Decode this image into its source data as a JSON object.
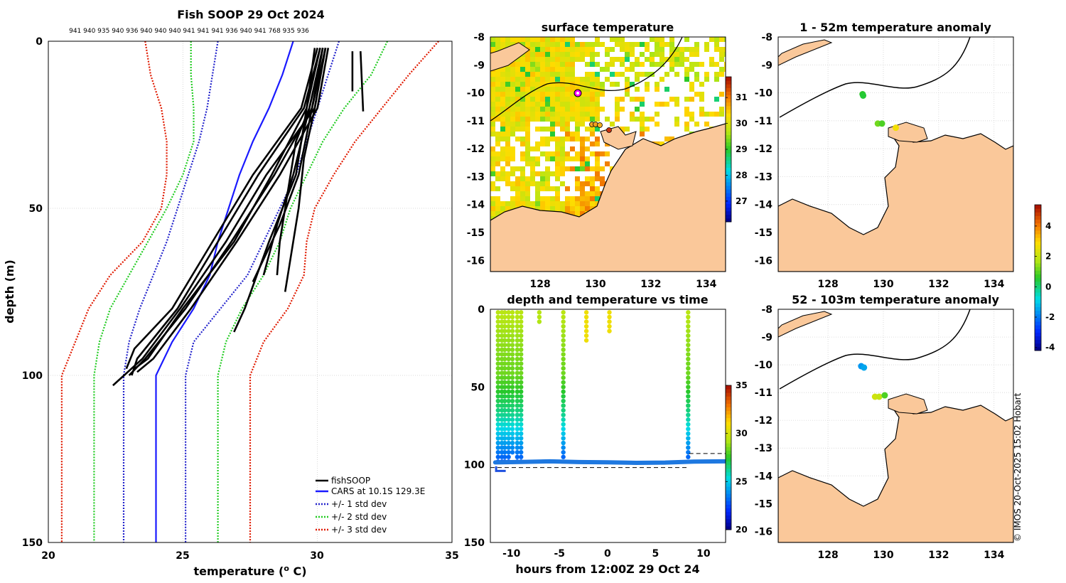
{
  "chart_data": [
    {
      "type": "line",
      "title": "Fish SOOP 29 Oct 2024",
      "xlabel": "temperature (",
      "xlabel_sup": "o",
      "xlabel_end": " C)",
      "ylabel": "depth (m)",
      "xlim": [
        20,
        35
      ],
      "ylim": [
        0,
        150
      ],
      "xticks": [
        "20",
        "25",
        "30",
        "35"
      ],
      "yticks": [
        "0",
        "50",
        "100",
        "150"
      ],
      "top_labels": "941 940 935 940 936 940 940 940 941 941 941 936 940 941 768 935 936",
      "legend": [
        "fishSOOP",
        "CARS at 10.1S 129.3E",
        "+/- 1 std dev",
        "+/- 2 std dev",
        "+/- 3 std dev"
      ],
      "colors": {
        "profiles": "#000000",
        "cars": "#1a1aff",
        "std1": "#2424cc",
        "std2": "#22cc22",
        "std3": "#e01a00"
      },
      "depth": [
        0,
        10,
        20,
        30,
        40,
        50,
        60,
        70,
        80,
        90,
        100,
        110,
        120,
        130,
        140,
        150
      ],
      "cars": [
        29.1,
        28.7,
        28.2,
        27.6,
        27.1,
        26.7,
        26.3,
        26.0,
        25.4,
        24.6,
        24.0,
        24.0,
        24.0,
        24.0,
        24.0,
        24.0
      ],
      "std1_low": [
        26.3,
        26.1,
        25.9,
        25.6,
        25.2,
        24.8,
        24.4,
        23.9,
        23.4,
        23.0,
        22.8,
        22.8,
        22.8,
        22.8,
        22.8,
        22.8
      ],
      "std1_high": [
        30.8,
        30.4,
        30.0,
        29.6,
        29.2,
        28.6,
        28.0,
        27.4,
        26.4,
        25.4,
        25.1,
        25.1,
        25.1,
        25.1,
        25.1,
        25.1
      ],
      "std2_low": [
        25.3,
        25.3,
        25.4,
        25.4,
        25.0,
        24.4,
        23.7,
        23.0,
        22.3,
        21.9,
        21.7,
        21.7,
        21.7,
        21.7,
        21.7,
        21.7
      ],
      "std2_high": [
        32.6,
        32.0,
        31.0,
        30.2,
        29.6,
        29.0,
        28.6,
        28.0,
        27.2,
        26.6,
        26.3,
        26.3,
        26.3,
        26.3,
        26.3,
        26.3
      ],
      "std3_low": [
        23.6,
        23.8,
        24.2,
        24.4,
        24.4,
        24.2,
        23.5,
        22.3,
        21.5,
        21.0,
        20.5,
        20.5,
        20.5,
        20.5,
        20.5,
        20.5
      ],
      "std3_high": [
        34.5,
        33.4,
        32.4,
        31.4,
        30.6,
        29.9,
        29.6,
        29.5,
        28.9,
        28.0,
        27.5,
        27.5,
        27.5,
        27.5,
        27.5,
        27.5
      ],
      "profiles": [
        {
          "depth": [
            2,
            20,
            40,
            60,
            80,
            95,
            103
          ],
          "temp": [
            30.3,
            29.9,
            28.1,
            26.6,
            24.9,
            23.5,
            22.4
          ]
        },
        {
          "depth": [
            2,
            20,
            40,
            60,
            80,
            95,
            100
          ],
          "temp": [
            30.2,
            29.8,
            28.4,
            26.8,
            25.1,
            23.6,
            23.0
          ]
        },
        {
          "depth": [
            2,
            20,
            40,
            60,
            80,
            95,
            100
          ],
          "temp": [
            30.1,
            29.5,
            27.8,
            26.3,
            24.8,
            23.3,
            23.1
          ]
        },
        {
          "depth": [
            2,
            20,
            40,
            60,
            80,
            95,
            99
          ],
          "temp": [
            30.4,
            30.0,
            28.6,
            27.0,
            25.3,
            23.9,
            23.3
          ]
        },
        {
          "depth": [
            2,
            20,
            40,
            60,
            80,
            95,
            98
          ],
          "temp": [
            29.9,
            29.6,
            28.3,
            26.9,
            25.0,
            23.7,
            23.2
          ]
        },
        {
          "depth": [
            2,
            20,
            40,
            60,
            80,
            92,
            98
          ],
          "temp": [
            30.0,
            29.4,
            27.6,
            26.1,
            24.6,
            23.2,
            22.9
          ]
        },
        {
          "depth": [
            2,
            20,
            40,
            55,
            70
          ],
          "temp": [
            30.2,
            29.7,
            29.1,
            28.5,
            28.0
          ]
        },
        {
          "depth": [
            2,
            20,
            40,
            55,
            72
          ],
          "temp": [
            30.3,
            29.8,
            29.3,
            28.6,
            27.6
          ]
        },
        {
          "depth": [
            2,
            20,
            40,
            60,
            80,
            87
          ],
          "temp": [
            30.1,
            29.6,
            29.2,
            28.2,
            27.3,
            26.9
          ]
        },
        {
          "depth": [
            2,
            20,
            35,
            50,
            70,
            75
          ],
          "temp": [
            30.3,
            29.9,
            29.5,
            29.3,
            28.9,
            28.8
          ]
        },
        {
          "depth": [
            2,
            20,
            30,
            45,
            60,
            70
          ],
          "temp": [
            30.2,
            29.7,
            29.2,
            28.9,
            28.6,
            28.5
          ]
        },
        {
          "depth": [
            3,
            21
          ],
          "temp": [
            31.6,
            31.7
          ]
        },
        {
          "depth": [
            3,
            15
          ],
          "temp": [
            31.3,
            31.3
          ]
        }
      ]
    },
    {
      "type": "heatmap",
      "title": "surface temperature",
      "xticks": [
        "128",
        "130",
        "132",
        "134"
      ],
      "yticks": [
        "-8",
        "-9",
        "-10",
        "-11",
        "-12",
        "-13",
        "-14",
        "-15",
        "-16"
      ],
      "xlim": [
        126.2,
        134.7
      ],
      "ylim": [
        -16.4,
        -8
      ],
      "colorbar_ticks": [
        "27",
        "28",
        "29",
        "30",
        "31"
      ],
      "colorbar_range": [
        26.2,
        31.8
      ]
    },
    {
      "type": "scatter",
      "title": "depth and temperature vs time",
      "xlabel": "hours from 12:00Z 29 Oct 24",
      "xticks": [
        "-10",
        "-5",
        "0",
        "5",
        "10"
      ],
      "yticks": [
        "0",
        "50",
        "100",
        "150"
      ],
      "xlim": [
        -12.2,
        12.3
      ],
      "ylim": [
        0,
        150
      ],
      "colorbar_ticks": [
        "20",
        "25",
        "30",
        "35"
      ],
      "colorbar_range": [
        20,
        35
      ],
      "casts": [
        {
          "x": -11.4,
          "maxdepth": 100
        },
        {
          "x": -11.0,
          "maxdepth": 99
        },
        {
          "x": -10.7,
          "maxdepth": 99
        },
        {
          "x": -10.3,
          "maxdepth": 98
        },
        {
          "x": -9.9,
          "maxdepth": 94
        },
        {
          "x": -9.4,
          "maxdepth": 98
        },
        {
          "x": -9.0,
          "maxdepth": 98
        },
        {
          "x": -7.1,
          "maxdepth": 10
        },
        {
          "x": -4.6,
          "maxdepth": 96
        },
        {
          "x": -2.2,
          "maxdepth": 21
        },
        {
          "x": 0.2,
          "maxdepth": 14
        },
        {
          "x": 8.4,
          "maxdepth": 97
        }
      ],
      "bottom_track": [
        {
          "x": -11.7,
          "y": 98.5
        },
        {
          "x": -9,
          "y": 98.2
        },
        {
          "x": -6,
          "y": 97.8
        },
        {
          "x": -3,
          "y": 98.3
        },
        {
          "x": 0,
          "y": 98.4
        },
        {
          "x": 3,
          "y": 98.8
        },
        {
          "x": 6,
          "y": 98.6
        },
        {
          "x": 9,
          "y": 98.0
        },
        {
          "x": 12.2,
          "y": 97.8
        }
      ],
      "dashed_lines": [
        {
          "x0": -12.2,
          "x1": 8.5,
          "y": 101.8
        },
        {
          "x0": 8.5,
          "x1": 12.3,
          "y": 92.8
        }
      ]
    },
    {
      "type": "scatter",
      "title": "1 - 52m temperature anomaly",
      "xticks": [
        "128",
        "130",
        "132",
        "134"
      ],
      "yticks": [
        "-8",
        "-9",
        "-10",
        "-11",
        "-12",
        "-13",
        "-14",
        "-15",
        "-16"
      ],
      "points": [
        {
          "lon": 129.25,
          "lat": -10.05,
          "value": 0.6
        },
        {
          "lon": 129.27,
          "lat": -10.1,
          "value": 0.5
        },
        {
          "lon": 129.8,
          "lat": -11.1,
          "value": 1.2
        },
        {
          "lon": 129.95,
          "lat": -11.1,
          "value": 0.9
        },
        {
          "lon": 130.45,
          "lat": -11.25,
          "value": 2.8
        }
      ]
    },
    {
      "type": "scatter",
      "title": "52 - 103m temperature anomaly",
      "xticks": [
        "128",
        "130",
        "132",
        "134"
      ],
      "yticks": [
        "-8",
        "-9",
        "-10",
        "-11",
        "-12",
        "-13",
        "-14",
        "-15",
        "-16"
      ],
      "points": [
        {
          "lon": 129.2,
          "lat": -10.05,
          "value": -1.7
        },
        {
          "lon": 129.3,
          "lat": -10.1,
          "value": -1.5
        },
        {
          "lon": 129.7,
          "lat": -11.15,
          "value": 2.2
        },
        {
          "lon": 129.85,
          "lat": -11.15,
          "value": 2.0
        },
        {
          "lon": 130.05,
          "lat": -11.1,
          "value": 0.9
        }
      ],
      "colorbar_ticks": [
        "-4",
        "-2",
        "0",
        "2",
        "4"
      ],
      "colorbar_range": [
        -4.2,
        5.4
      ]
    }
  ],
  "credit": "© IMOS 20-Oct-2025 15:02 Hobart"
}
